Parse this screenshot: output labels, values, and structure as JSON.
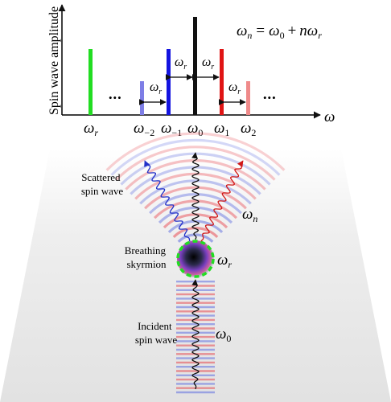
{
  "spectrum": {
    "ylabel": "Spin wave amplitude",
    "xlabel": "ω",
    "equation": {
      "lhs_sym": "ω",
      "lhs_sub": "n",
      "eq": "=",
      "t1_sym": "ω",
      "t1_sub": "0",
      "plus": "+",
      "t2_coef": "n",
      "t2_sym": "ω",
      "t2_sub": "r"
    },
    "ellipsis_left": "•••",
    "ellipsis_right": "•••",
    "tick_labels": [
      {
        "sym": "ω",
        "sub": "r"
      },
      {
        "sym": "ω",
        "sub": "−2"
      },
      {
        "sym": "ω",
        "sub": "−1"
      },
      {
        "sym": "ω",
        "sub": "0"
      },
      {
        "sym": "ω",
        "sub": "1"
      },
      {
        "sym": "ω",
        "sub": "2"
      }
    ],
    "spacing_labels": [
      {
        "sym": "ω",
        "sub": "r"
      },
      {
        "sym": "ω",
        "sub": "r"
      },
      {
        "sym": "ω",
        "sub": "r"
      },
      {
        "sym": "ω",
        "sub": "r"
      }
    ],
    "bar_colors": [
      "#22dd22",
      "#7e7ee6",
      "#1414e0",
      "#111111",
      "#e01414",
      "#ef8a8a"
    ]
  },
  "scene": {
    "scattered_label": [
      "Scattered",
      "spin wave"
    ],
    "skyrmion_label": [
      "Breathing",
      "skyrmion"
    ],
    "incident_label": [
      "Incident",
      "spin wave"
    ],
    "omega_n": {
      "sym": "ω",
      "sub": "n"
    },
    "omega_r": {
      "sym": "ω",
      "sub": "r"
    },
    "omega_0": {
      "sym": "ω",
      "sub": "0"
    },
    "colors": {
      "red": "#e8474f",
      "blue": "#5f6ee0",
      "ring": "#22dd22"
    }
  }
}
